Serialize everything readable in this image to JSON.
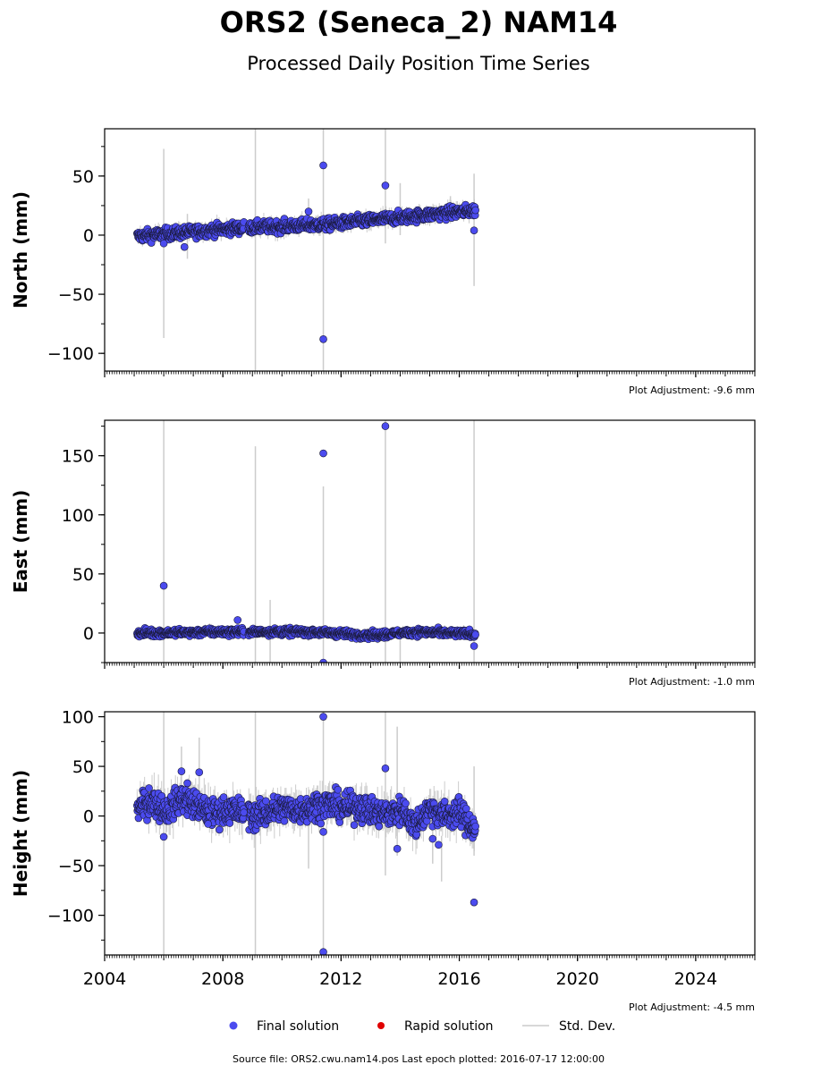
{
  "title": "ORS2 (Seneca_2) NAM14",
  "subtitle": "Processed Daily Position Time Series",
  "legend": {
    "final": "Final solution",
    "rapid": "Rapid solution",
    "std": "Std. Dev."
  },
  "footer": "Source file: ORS2.cwu.nam14.pos  Last epoch plotted: 2016-07-17 12:00:00",
  "colors": {
    "final": "#4b4bef",
    "rapid": "#e00000",
    "std": "#cccccc"
  },
  "chart_data": [
    {
      "type": "scatter",
      "ylabel": "North (mm)",
      "adjustment": "Plot Adjustment: -9.6 mm",
      "xlim": [
        2004,
        2026
      ],
      "ylim": [
        -115,
        90
      ],
      "yticks": [
        -100,
        -50,
        0,
        50
      ],
      "ytick_labels": [
        "−100",
        "−50",
        "0",
        "50"
      ],
      "xticks": [
        2004,
        2008,
        2012,
        2016,
        2020,
        2024
      ],
      "xtick_labels": [],
      "trend": [
        [
          2005.1,
          -1
        ],
        [
          2008.5,
          6
        ],
        [
          2011.5,
          9
        ],
        [
          2016.55,
          21
        ]
      ],
      "noise": 2.5,
      "outliers": [
        [
          2006.0,
          -7
        ],
        [
          2006.7,
          -10
        ],
        [
          2010.9,
          20
        ],
        [
          2011.4,
          59
        ],
        [
          2011.4,
          -88
        ],
        [
          2013.5,
          42
        ],
        [
          2016.5,
          4
        ]
      ],
      "errorbars": [
        [
          2006.0,
          -87,
          73
        ],
        [
          2009.1,
          -115,
          90
        ],
        [
          2011.4,
          -115,
          90
        ],
        [
          2013.5,
          -7,
          90
        ],
        [
          2016.5,
          -43,
          52
        ],
        [
          2014.0,
          0,
          44
        ],
        [
          2010.9,
          10,
          31
        ],
        [
          2006.8,
          -20,
          18
        ],
        [
          2015.7,
          10,
          33
        ]
      ]
    },
    {
      "type": "scatter",
      "ylabel": "East (mm)",
      "adjustment": "Plot Adjustment: -1.0 mm",
      "xlim": [
        2004,
        2026
      ],
      "ylim": [
        -25,
        180
      ],
      "yticks": [
        0,
        50,
        100,
        150
      ],
      "ytick_labels": [
        "0",
        "50",
        "100",
        "150"
      ],
      "xticks": [
        2004,
        2008,
        2012,
        2016,
        2020,
        2024
      ],
      "xtick_labels": [],
      "trend": [
        [
          2005.1,
          0
        ],
        [
          2008.0,
          1
        ],
        [
          2011.0,
          1
        ],
        [
          2013.0,
          -2
        ],
        [
          2014.5,
          1
        ],
        [
          2016.55,
          -1
        ]
      ],
      "noise": 1.5,
      "outliers": [
        [
          2006.0,
          40
        ],
        [
          2008.5,
          11
        ],
        [
          2011.4,
          152
        ],
        [
          2011.4,
          -25
        ],
        [
          2013.5,
          175
        ],
        [
          2016.5,
          -11
        ]
      ],
      "errorbars": [
        [
          2006.0,
          -25,
          180
        ],
        [
          2009.1,
          -25,
          158
        ],
        [
          2009.6,
          -25,
          28
        ],
        [
          2011.4,
          -25,
          124
        ],
        [
          2013.5,
          -25,
          180
        ],
        [
          2016.5,
          -25,
          180
        ],
        [
          2014.0,
          -25,
          5
        ]
      ]
    },
    {
      "type": "scatter",
      "ylabel": "Height (mm)",
      "adjustment": "Plot Adjustment: -4.5 mm",
      "xlim": [
        2004,
        2026
      ],
      "ylim": [
        -140,
        105
      ],
      "yticks": [
        -100,
        -50,
        0,
        50,
        100
      ],
      "ytick_labels": [
        "−100",
        "−50",
        "0",
        "50",
        "100"
      ],
      "xticks": [
        2004,
        2008,
        2012,
        2016,
        2020,
        2024
      ],
      "xtick_labels": [
        "2004",
        "2008",
        "2012",
        "2016",
        "2020",
        "2024"
      ],
      "trend": [
        [
          2005.1,
          8
        ],
        [
          2005.6,
          15
        ],
        [
          2006.1,
          5
        ],
        [
          2006.6,
          18
        ],
        [
          2007.1,
          10
        ],
        [
          2007.6,
          2
        ],
        [
          2008.1,
          6
        ],
        [
          2008.6,
          4
        ],
        [
          2009.1,
          0
        ],
        [
          2009.6,
          5
        ],
        [
          2010.1,
          8
        ],
        [
          2010.6,
          6
        ],
        [
          2011.1,
          10
        ],
        [
          2011.6,
          12
        ],
        [
          2012.1,
          8
        ],
        [
          2012.6,
          10
        ],
        [
          2013.1,
          4
        ],
        [
          2013.6,
          2
        ],
        [
          2014.1,
          6
        ],
        [
          2014.5,
          -10
        ],
        [
          2015.0,
          8
        ],
        [
          2015.5,
          0
        ],
        [
          2016.0,
          4
        ],
        [
          2016.55,
          -15
        ]
      ],
      "noise": 7,
      "outliers": [
        [
          2005.5,
          28
        ],
        [
          2006.0,
          -21
        ],
        [
          2006.6,
          45
        ],
        [
          2006.8,
          33
        ],
        [
          2007.2,
          44
        ],
        [
          2007.5,
          -8
        ],
        [
          2011.4,
          100
        ],
        [
          2011.4,
          -137
        ],
        [
          2011.4,
          -16
        ],
        [
          2013.5,
          48
        ],
        [
          2013.9,
          -33
        ],
        [
          2015.1,
          -23
        ],
        [
          2015.3,
          -29
        ],
        [
          2016.5,
          -87
        ]
      ],
      "errorbars": [
        [
          2006.0,
          -140,
          105
        ],
        [
          2009.1,
          -140,
          105
        ],
        [
          2011.4,
          -140,
          105
        ],
        [
          2013.5,
          -60,
          105
        ],
        [
          2013.9,
          -40,
          90
        ],
        [
          2016.5,
          -40,
          50
        ],
        [
          2007.2,
          -5,
          79
        ],
        [
          2006.6,
          0,
          70
        ],
        [
          2010.9,
          -53,
          10
        ],
        [
          2015.4,
          -66,
          -20
        ],
        [
          2015.1,
          -48,
          -10
        ]
      ]
    }
  ]
}
